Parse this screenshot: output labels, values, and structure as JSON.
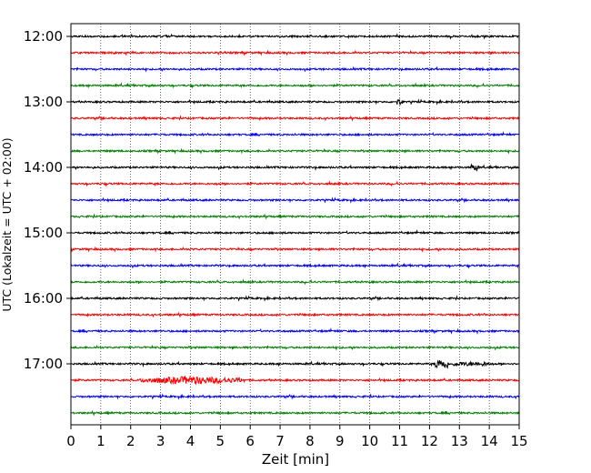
{
  "chart_data": {
    "type": "line",
    "title": "",
    "xlabel": "Zeit  [min]",
    "ylabel": "UTC (Lokalzeit = UTC + 02:00)",
    "xlim": [
      0,
      15
    ],
    "x_ticks": [
      "0",
      "1",
      "2",
      "3",
      "4",
      "5",
      "6",
      "7",
      "8",
      "9",
      "10",
      "11",
      "12",
      "13",
      "14",
      "15"
    ],
    "y_tick_labels": [
      "12:00",
      "13:00",
      "14:00",
      "15:00",
      "16:00",
      "17:00"
    ],
    "grid": "vertical dotted",
    "trace_start_times": [
      "12:00",
      "12:15",
      "12:30",
      "12:45",
      "13:00",
      "13:15",
      "13:30",
      "13:45",
      "14:00",
      "14:15",
      "14:30",
      "14:45",
      "15:00",
      "15:15",
      "15:30",
      "15:45",
      "16:00",
      "16:15",
      "16:30",
      "16:45",
      "17:00",
      "17:15",
      "17:30",
      "17:45"
    ],
    "trace_colors": [
      "#000000",
      "#ff0000",
      "#0000ff",
      "#008000"
    ],
    "events": [
      {
        "trace": "17:00",
        "x_min": [
          12.2,
          12.6
        ],
        "note": "short burst"
      },
      {
        "trace": "17:00",
        "x_min": [
          12.8,
          14.0
        ],
        "note": "elevated noise"
      },
      {
        "trace": "17:15",
        "x_min": [
          2.3,
          5.8
        ],
        "note": "strong wave train"
      },
      {
        "trace": "13:00",
        "x_min": [
          10.9,
          11.1
        ],
        "note": "spike"
      },
      {
        "trace": "14:00",
        "x_min": [
          13.4,
          13.6
        ],
        "note": "spike"
      }
    ]
  }
}
